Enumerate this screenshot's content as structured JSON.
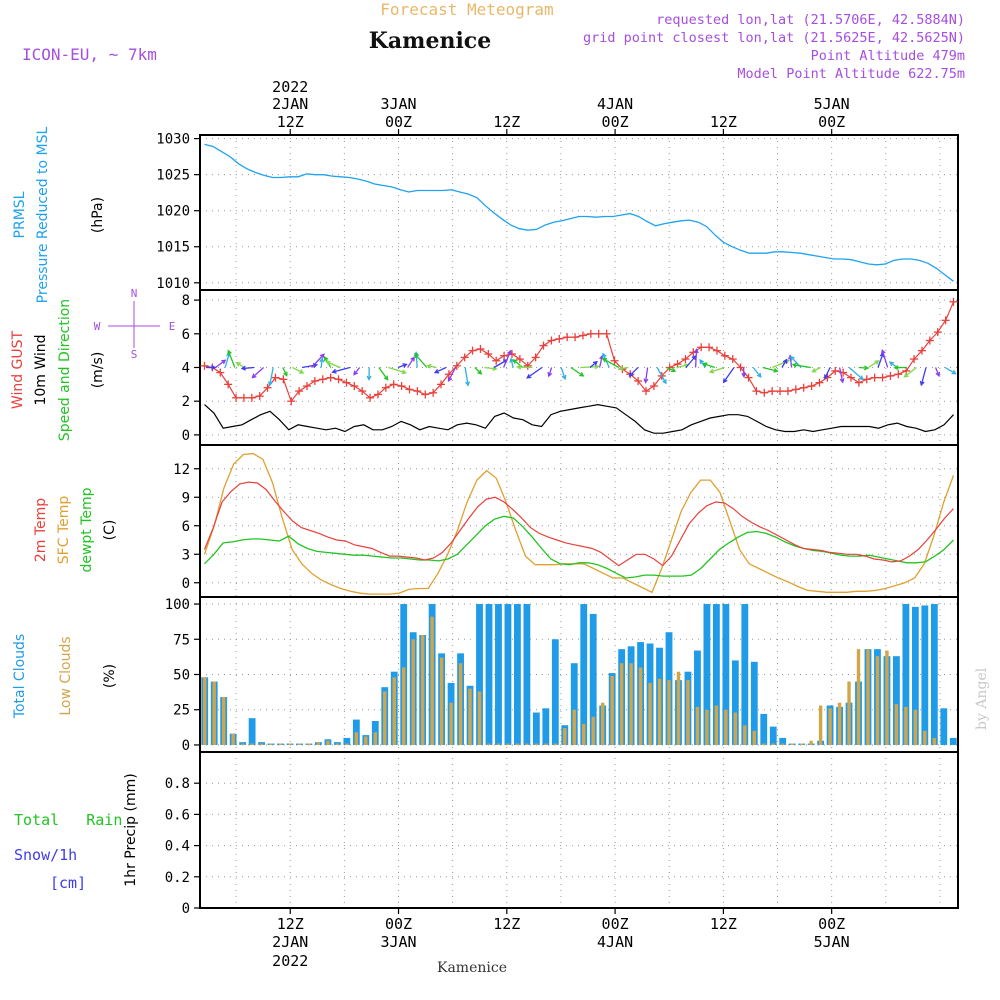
{
  "header": {
    "product": "Forecast Meteogram",
    "location": "Kamenice",
    "model": "ICON-EU, ~ 7km",
    "requested": "requested lon,lat (21.5706E, 42.5884N)",
    "gridpoint": "grid point closest lon,lat (21.5625E, 42.5625N)",
    "point_alt": "Point Altitude 479m",
    "model_alt": "Model Point Altitude 622.75m",
    "watermark": "by Angel",
    "footer_location": "Kamenice"
  },
  "time_axis": {
    "top_labels": [
      {
        "l1": "2022",
        "l2": "2JAN",
        "l3": "12Z",
        "h": 12
      },
      {
        "l1": "",
        "l2": "3JAN",
        "l3": "00Z",
        "h": 24
      },
      {
        "l1": "",
        "l2": "",
        "l3": "12Z",
        "h": 36
      },
      {
        "l1": "",
        "l2": "4JAN",
        "l3": "00Z",
        "h": 48
      },
      {
        "l1": "",
        "l2": "",
        "l3": "12Z",
        "h": 60
      },
      {
        "l1": "",
        "l2": "5JAN",
        "l3": "00Z",
        "h": 72
      }
    ],
    "bottom_labels": [
      {
        "l1": "12Z",
        "l2": "2JAN",
        "l3": "2022",
        "h": 12
      },
      {
        "l1": "00Z",
        "l2": "3JAN",
        "l3": "",
        "h": 24
      },
      {
        "l1": "12Z",
        "l2": "",
        "l3": "",
        "h": 36
      },
      {
        "l1": "00Z",
        "l2": "4JAN",
        "l3": "",
        "h": 48
      },
      {
        "l1": "12Z",
        "l2": "",
        "l3": "",
        "h": 60
      },
      {
        "l1": "00Z",
        "l2": "5JAN",
        "l3": "",
        "h": 72
      }
    ]
  },
  "panel_labels": {
    "pressure": {
      "a": "PRMSL",
      "b": "Pressure Reduced to MSL",
      "unit": "(hPa)"
    },
    "wind": {
      "gust": "Wind GUST",
      "wind10": "10m Wind",
      "dir": "Speed and Direction",
      "unit": "(m/s)",
      "compass_ns": "N",
      "compass_w": "W",
      "compass_e": "E",
      "compass_s": "S"
    },
    "temp": {
      "t2m": "2m Temp",
      "sfc": "SFC Temp",
      "dewpt": "dewpt Temp",
      "unit": "(C)"
    },
    "clouds": {
      "total": "Total Clouds",
      "low": "Low Clouds",
      "unit": "(%)"
    },
    "precip": {
      "total_rain": "Total   Rain",
      "snow": "Snow/1h",
      "cm": "[cm]",
      "unit": "1hr Precip (mm)"
    }
  },
  "colors": {
    "pressure": "#1fa2f0",
    "gust": "#e8413c",
    "wind10": "#000000",
    "t2m": "#e8413c",
    "sfc": "#e0a030",
    "dewpt": "#22c422",
    "total_clouds": "#1f9be8",
    "low_clouds": "#d2a54b",
    "label_purple": "#a64ee0",
    "label_orange": "#e8b86a",
    "rain_green": "#22c422",
    "snow_blue": "#3c3cf0"
  },
  "chart_data": [
    {
      "type": "line",
      "name": "pressure",
      "xlabel": "",
      "ylabel": "(hPa)",
      "ylim": [
        1009,
        1030.5
      ],
      "yticks": [
        1010,
        1015,
        1020,
        1025,
        1030
      ],
      "x_start_hour": 3,
      "x_step_hours": 1,
      "series": [
        {
          "name": "PRMSL",
          "values": [
            1029.2,
            1028.9,
            1028.2,
            1027.5,
            1026.5,
            1025.8,
            1025.3,
            1024.9,
            1024.6,
            1024.6,
            1024.7,
            1024.7,
            1025.1,
            1025.0,
            1025.0,
            1024.8,
            1024.7,
            1024.6,
            1024.4,
            1024.1,
            1023.7,
            1023.5,
            1023.3,
            1022.9,
            1022.6,
            1022.8,
            1022.8,
            1022.8,
            1022.8,
            1022.9,
            1022.6,
            1022.3,
            1021.8,
            1020.7,
            1019.7,
            1018.8,
            1018.0,
            1017.5,
            1017.3,
            1017.4,
            1018.0,
            1018.4,
            1018.6,
            1018.9,
            1019.2,
            1019.2,
            1019.1,
            1019.2,
            1019.2,
            1019.4,
            1019.6,
            1019.2,
            1018.5,
            1017.9,
            1018.2,
            1018.4,
            1018.6,
            1018.7,
            1018.4,
            1017.8,
            1016.6,
            1015.6,
            1015.0,
            1014.5,
            1014.1,
            1014.1,
            1014.1,
            1014.3,
            1014.3,
            1014.2,
            1014.1,
            1013.9,
            1013.7,
            1013.5,
            1013.3,
            1013.3,
            1013.2,
            1012.9,
            1012.6,
            1012.5,
            1012.6,
            1013.1,
            1013.3,
            1013.3,
            1013.1,
            1012.7,
            1012.0,
            1011.1,
            1010.2
          ]
        }
      ]
    },
    {
      "type": "line",
      "name": "wind",
      "xlabel": "",
      "ylabel": "(m/s)",
      "ylim": [
        -0.6,
        8.6
      ],
      "yticks": [
        0,
        2,
        4,
        6,
        8
      ],
      "x_start_hour": 3,
      "x_step_hours": 1,
      "series": [
        {
          "name": "Wind GUST",
          "values": [
            4.1,
            4.0,
            3.7,
            3.0,
            2.2,
            2.2,
            2.2,
            2.3,
            2.8,
            3.4,
            3.3,
            2.0,
            2.6,
            2.9,
            3.2,
            3.3,
            3.4,
            3.3,
            3.1,
            2.9,
            2.6,
            2.2,
            2.4,
            2.8,
            3.0,
            2.9,
            2.7,
            2.6,
            2.4,
            2.5,
            3.0,
            3.6,
            4.1,
            4.6,
            5.0,
            5.1,
            4.8,
            4.4,
            4.7,
            4.8,
            4.5,
            4.1,
            4.6,
            5.3,
            5.6,
            5.7,
            5.8,
            5.8,
            5.9,
            6.0,
            6.0,
            6.0,
            4.4,
            3.9,
            3.6,
            3.2,
            2.6,
            2.9,
            3.5,
            4.0,
            4.2,
            4.5,
            4.9,
            5.2,
            5.2,
            5.0,
            4.7,
            4.5,
            4.0,
            3.4,
            2.6,
            2.5,
            2.6,
            2.6,
            2.6,
            2.7,
            2.8,
            2.9,
            3.1,
            3.4,
            3.8,
            3.7,
            3.4,
            3.1,
            3.3,
            3.4,
            3.4,
            3.5,
            3.6,
            3.8,
            4.5,
            5.0,
            5.6,
            6.1,
            6.8,
            7.9
          ]
        },
        {
          "name": "10m Wind",
          "values": [
            1.8,
            1.3,
            0.4,
            0.5,
            0.6,
            0.9,
            1.2,
            1.4,
            0.9,
            0.3,
            0.6,
            0.5,
            0.4,
            0.3,
            0.4,
            0.2,
            0.5,
            0.6,
            0.3,
            0.3,
            0.5,
            0.8,
            0.6,
            0.3,
            0.5,
            0.4,
            0.3,
            0.6,
            0.7,
            0.6,
            0.4,
            1.1,
            1.3,
            1.0,
            0.9,
            0.6,
            0.5,
            1.2,
            1.4,
            1.5,
            1.6,
            1.7,
            1.8,
            1.7,
            1.6,
            1.2,
            0.8,
            0.3,
            0.1,
            0.1,
            0.2,
            0.3,
            0.6,
            0.8,
            1.0,
            1.1,
            1.2,
            1.2,
            1.1,
            0.8,
            0.5,
            0.3,
            0.2,
            0.2,
            0.3,
            0.2,
            0.3,
            0.4,
            0.5,
            0.5,
            0.5,
            0.5,
            0.4,
            0.6,
            0.7,
            0.5,
            0.4,
            0.2,
            0.3,
            0.6,
            1.2
          ]
        }
      ]
    },
    {
      "type": "line",
      "name": "temperature",
      "xlabel": "",
      "ylabel": "(C)",
      "ylim": [
        -1.5,
        14.5
      ],
      "yticks": [
        0,
        3,
        6,
        9,
        12
      ],
      "x_start_hour": 3,
      "x_step_hours": 1,
      "series": [
        {
          "name": "2m Temp",
          "values": [
            3.5,
            5.8,
            8.5,
            9.6,
            10.4,
            10.6,
            10.5,
            9.8,
            8.6,
            7.5,
            6.5,
            5.8,
            5.5,
            5.2,
            4.8,
            4.5,
            4.4,
            4.0,
            3.8,
            3.6,
            3.2,
            2.8,
            2.8,
            2.7,
            2.6,
            2.4,
            2.6,
            3.2,
            4.2,
            5.5,
            6.8,
            8.0,
            8.8,
            9.0,
            8.5,
            7.7,
            6.8,
            5.8,
            5.2,
            4.8,
            4.5,
            4.2,
            4.0,
            3.8,
            3.6,
            3.2,
            2.5,
            1.8,
            2.4,
            3.0,
            3.0,
            2.5,
            1.8,
            2.8,
            4.5,
            6.2,
            7.3,
            8.1,
            8.5,
            8.4,
            7.8,
            7.0,
            6.4,
            5.9,
            5.5,
            5.0,
            4.5,
            4.0,
            3.6,
            3.5,
            3.4,
            3.2,
            3.1,
            3.0,
            3.0,
            2.8,
            2.5,
            2.4,
            2.2,
            2.3,
            2.8,
            3.5,
            4.5,
            5.6,
            6.8,
            7.8
          ]
        },
        {
          "name": "SFC Temp",
          "values": [
            3.0,
            6.0,
            10.0,
            12.5,
            13.5,
            13.6,
            13.0,
            10.5,
            6.8,
            3.5,
            2.0,
            1.0,
            0.3,
            -0.2,
            -0.6,
            -0.9,
            -1.1,
            -1.2,
            -1.2,
            -1.2,
            -1.1,
            -0.7,
            -0.6,
            -0.6,
            1.0,
            3.0,
            5.5,
            8.5,
            10.8,
            11.8,
            11.0,
            8.5,
            5.5,
            2.8,
            1.9,
            1.9,
            1.9,
            2.0,
            2.0,
            2.0,
            1.5,
            1.0,
            0.5,
            0.5,
            0.0,
            -0.5,
            -1.0,
            1.5,
            4.5,
            7.5,
            9.5,
            10.8,
            10.8,
            9.5,
            6.5,
            3.5,
            2.0,
            1.5,
            1.0,
            0.5,
            0.1,
            -0.4,
            -0.8,
            -0.9,
            -1.0,
            -1.0,
            -1.0,
            -0.9,
            -0.9,
            -0.8,
            -0.6,
            -0.3,
            0.0,
            0.5,
            2.0,
            5.0,
            8.5,
            11.3
          ]
        },
        {
          "name": "dewpt Temp",
          "values": [
            2.0,
            3.0,
            4.2,
            4.3,
            4.5,
            4.6,
            4.6,
            4.5,
            4.4,
            4.9,
            4.1,
            3.6,
            3.3,
            3.2,
            3.1,
            3.0,
            2.9,
            2.9,
            2.8,
            2.7,
            2.6,
            2.6,
            2.5,
            2.4,
            2.4,
            2.3,
            2.5,
            3.0,
            4.0,
            5.0,
            6.0,
            6.7,
            7.0,
            6.8,
            5.9,
            4.8,
            3.6,
            2.5,
            2.0,
            1.9,
            2.1,
            2.1,
            1.9,
            1.5,
            1.0,
            0.5,
            0.6,
            0.8,
            0.8,
            0.7,
            0.7,
            0.7,
            0.8,
            1.5,
            2.5,
            3.5,
            4.2,
            4.8,
            5.3,
            5.4,
            5.2,
            4.8,
            4.3,
            3.9,
            3.6,
            3.4,
            3.3,
            3.1,
            2.9,
            2.8,
            2.8,
            2.9,
            2.7,
            2.5,
            2.3,
            2.1,
            2.1,
            2.2,
            2.8,
            3.5,
            4.5
          ]
        }
      ]
    },
    {
      "type": "bar",
      "name": "clouds",
      "xlabel": "",
      "ylabel": "(%)",
      "ylim": [
        -5,
        105
      ],
      "yticks": [
        0,
        25,
        50,
        75,
        100
      ],
      "x_start_hour": 3,
      "x_step_hours": 1,
      "series": [
        {
          "name": "Total Clouds",
          "values": [
            48,
            45,
            34,
            8,
            2,
            19,
            2,
            1,
            1,
            1,
            1,
            1,
            2,
            4,
            2,
            5,
            18,
            7,
            17,
            41,
            52,
            100,
            80,
            78,
            100,
            65,
            44,
            65,
            42,
            100,
            100,
            100,
            100,
            100,
            100,
            23,
            26,
            75,
            14,
            58,
            100,
            93,
            28,
            51,
            68,
            70,
            73,
            72,
            69,
            80,
            46,
            52,
            67,
            100,
            100,
            100,
            60,
            100,
            59,
            22,
            13,
            5,
            1,
            1,
            1,
            3,
            28,
            27,
            30,
            45,
            68,
            68,
            63,
            63,
            100,
            98,
            99,
            100,
            26,
            5
          ]
        },
        {
          "name": "Low Clouds",
          "values": [
            48,
            45,
            34,
            8,
            1,
            1,
            1,
            1,
            1,
            1,
            1,
            1,
            2,
            3,
            1,
            1,
            9,
            6,
            9,
            38,
            48,
            55,
            75,
            78,
            91,
            62,
            30,
            58,
            40,
            38,
            1,
            1,
            1,
            1,
            1,
            1,
            1,
            1,
            12,
            25,
            15,
            20,
            30,
            49,
            58,
            58,
            55,
            44,
            47,
            46,
            52,
            46,
            27,
            25,
            28,
            25,
            23,
            14,
            10,
            1,
            1,
            1,
            1,
            1,
            3,
            28,
            26,
            30,
            45,
            68,
            68,
            63,
            67,
            29,
            27,
            25,
            10,
            5
          ]
        }
      ]
    },
    {
      "type": "bar",
      "name": "precipitation",
      "xlabel": "",
      "ylabel": "1hr Precip (mm)",
      "ylim": [
        0,
        1.0
      ],
      "yticks": [
        0,
        0.2,
        0.4,
        0.6,
        0.8
      ],
      "series": [
        {
          "name": "Total Rain",
          "values": []
        },
        {
          "name": "Snow/1h",
          "values": []
        }
      ]
    }
  ]
}
